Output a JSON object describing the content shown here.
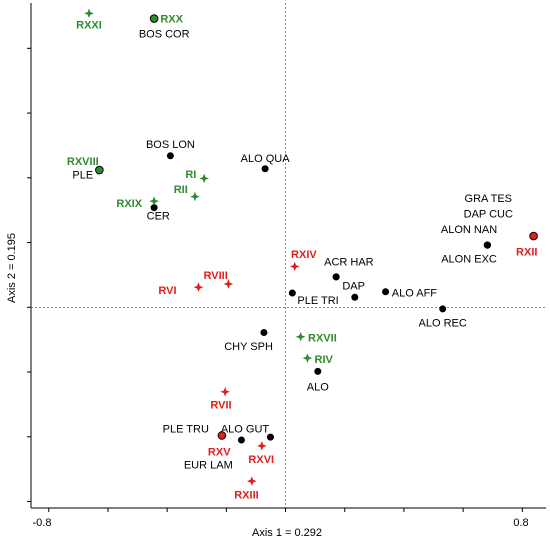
{
  "chart_data": {
    "type": "scatter",
    "xlabel": "Axis 1 = 0.292",
    "ylabel": "Axis 2 = 0.195",
    "x_tick_labels": [
      "-0.8",
      "0.8"
    ],
    "xlim": [
      -0.86,
      0.88
    ],
    "ylim": [
      -0.62,
      0.94
    ],
    "grid": false,
    "reference_lines": "dashed lines at x = 0 and y = 0",
    "colors": {
      "species": "#000000",
      "sites_green": "#2e8b2e",
      "sites_red": "#e0201c"
    },
    "species": [
      {
        "label": "BOS COR",
        "x": -0.444,
        "y": 0.892
      },
      {
        "label": "BOS LON",
        "x": -0.389,
        "y": 0.468
      },
      {
        "label": "ALO QUA",
        "x": -0.069,
        "y": 0.428
      },
      {
        "label": "PLE",
        "x": -0.629,
        "y": 0.424
      },
      {
        "label": "CER",
        "x": -0.444,
        "y": 0.308
      },
      {
        "label": "GRA TES",
        "x": 0.682,
        "y": 0.192
      },
      {
        "label": "DAP CUC",
        "x": 0.682,
        "y": 0.192
      },
      {
        "label": "ALON NAN",
        "x": 0.682,
        "y": 0.192
      },
      {
        "label": "ALON EXC",
        "x": 0.682,
        "y": 0.192
      },
      {
        "label": "ACR HAR",
        "x": 0.171,
        "y": 0.094
      },
      {
        "label": "DAP",
        "x": 0.171,
        "y": 0.094
      },
      {
        "label": "ALO AFF",
        "x": 0.338,
        "y": 0.048
      },
      {
        "label": "PLE TRI",
        "x": 0.023,
        "y": 0.044
      },
      {
        "label": "PLE TRI",
        "x": 0.234,
        "y": 0.031
      },
      {
        "label": "ALO REC",
        "x": 0.531,
        "y": -0.005
      },
      {
        "label": "CHY SPH",
        "x": -0.073,
        "y": -0.078
      },
      {
        "label": "ALO",
        "x": 0.109,
        "y": -0.198
      },
      {
        "label": "PLE TRU",
        "x": -0.149,
        "y": -0.41
      },
      {
        "label": "ALO GUT",
        "x": -0.051,
        "y": -0.401
      },
      {
        "label": "EUR LAM",
        "x": -0.215,
        "y": -0.396
      }
    ],
    "sites": [
      {
        "label": "RXX",
        "x": -0.444,
        "y": 0.892,
        "color": "#2e8b2e",
        "symbol": "circle"
      },
      {
        "label": "RXXI",
        "x": -0.664,
        "y": 0.908,
        "color": "#2e8b2e",
        "symbol": "star"
      },
      {
        "label": "RXVIII",
        "x": -0.629,
        "y": 0.424,
        "color": "#2e8b2e",
        "symbol": "circle"
      },
      {
        "label": "RI",
        "x": -0.275,
        "y": 0.398,
        "color": "#2e8b2e",
        "symbol": "star"
      },
      {
        "label": "RII",
        "x": -0.306,
        "y": 0.342,
        "color": "#2e8b2e",
        "symbol": "star"
      },
      {
        "label": "RXIX",
        "x": -0.444,
        "y": 0.328,
        "color": "#2e8b2e",
        "symbol": "star"
      },
      {
        "label": "RXII",
        "x": 0.838,
        "y": 0.22,
        "color": "#e0201c",
        "symbol": "circle"
      },
      {
        "label": "RXIV",
        "x": 0.031,
        "y": 0.126,
        "color": "#e0201c",
        "symbol": "star"
      },
      {
        "label": "RVIII",
        "x": -0.193,
        "y": 0.072,
        "color": "#e0201c",
        "symbol": "star"
      },
      {
        "label": "RVI",
        "x": -0.294,
        "y": 0.062,
        "color": "#e0201c",
        "symbol": "star"
      },
      {
        "label": "RXVII",
        "x": 0.051,
        "y": -0.091,
        "color": "#2e8b2e",
        "symbol": "star"
      },
      {
        "label": "RIV",
        "x": 0.074,
        "y": -0.157,
        "color": "#2e8b2e",
        "symbol": "star"
      },
      {
        "label": "RVII",
        "x": -0.204,
        "y": -0.261,
        "color": "#e0201c",
        "symbol": "star"
      },
      {
        "label": "RXV",
        "x": -0.215,
        "y": -0.396,
        "color": "#e0201c",
        "symbol": "circle"
      },
      {
        "label": "RXVI",
        "x": -0.08,
        "y": -0.428,
        "color": "#e0201c",
        "symbol": "star"
      },
      {
        "label": "RXIII",
        "x": -0.114,
        "y": -0.537,
        "color": "#e0201c",
        "symbol": "star"
      }
    ],
    "labels": [
      {
        "text": "RXXI",
        "x": -0.664,
        "y": 0.873,
        "color": "#2e8b2e",
        "bold": true,
        "anchor": "middle"
      },
      {
        "text": "RXX",
        "x": -0.423,
        "y": 0.892,
        "color": "#2e8b2e",
        "bold": true,
        "anchor": "start"
      },
      {
        "text": "BOS COR",
        "x": -0.41,
        "y": 0.846,
        "color": "#000000",
        "bold": false,
        "anchor": "middle"
      },
      {
        "text": "BOS LON",
        "x": -0.389,
        "y": 0.504,
        "color": "#000000",
        "bold": false,
        "anchor": "middle"
      },
      {
        "text": "ALO QUA",
        "x": -0.069,
        "y": 0.461,
        "color": "#000000",
        "bold": false,
        "anchor": "middle"
      },
      {
        "text": "RXVIII",
        "x": -0.685,
        "y": 0.452,
        "color": "#2e8b2e",
        "bold": true,
        "anchor": "middle"
      },
      {
        "text": "PLE",
        "x": -0.685,
        "y": 0.41,
        "color": "#000000",
        "bold": false,
        "anchor": "middle"
      },
      {
        "text": "RI",
        "x": -0.32,
        "y": 0.412,
        "color": "#2e8b2e",
        "bold": true,
        "anchor": "middle"
      },
      {
        "text": "RII",
        "x": -0.354,
        "y": 0.365,
        "color": "#2e8b2e",
        "bold": true,
        "anchor": "middle"
      },
      {
        "text": "RXIX",
        "x": -0.528,
        "y": 0.322,
        "color": "#2e8b2e",
        "bold": true,
        "anchor": "middle"
      },
      {
        "text": "CER",
        "x": -0.43,
        "y": 0.283,
        "color": "#000000",
        "bold": false,
        "anchor": "middle"
      },
      {
        "text": "GRA TES",
        "x": 0.685,
        "y": 0.337,
        "color": "#000000",
        "bold": false,
        "anchor": "middle"
      },
      {
        "text": "DAP CUC",
        "x": 0.685,
        "y": 0.29,
        "color": "#000000",
        "bold": false,
        "anchor": "middle"
      },
      {
        "text": "ALON NAN",
        "x": 0.62,
        "y": 0.242,
        "color": "#000000",
        "bold": false,
        "anchor": "middle"
      },
      {
        "text": "ALON EXC",
        "x": 0.62,
        "y": 0.151,
        "color": "#000000",
        "bold": false,
        "anchor": "middle"
      },
      {
        "text": "RXII",
        "x": 0.815,
        "y": 0.172,
        "color": "#e0201c",
        "bold": true,
        "anchor": "middle"
      },
      {
        "text": "RXIV",
        "x": 0.062,
        "y": 0.164,
        "color": "#e0201c",
        "bold": true,
        "anchor": "middle"
      },
      {
        "text": "ACR HAR",
        "x": 0.214,
        "y": 0.141,
        "color": "#000000",
        "bold": false,
        "anchor": "middle"
      },
      {
        "text": "RVIII",
        "x": -0.236,
        "y": 0.099,
        "color": "#e0201c",
        "bold": true,
        "anchor": "middle"
      },
      {
        "text": "DAP",
        "x": 0.192,
        "y": 0.067,
        "color": "#000000",
        "bold": false,
        "anchor": "start"
      },
      {
        "text": "RVI",
        "x": -0.399,
        "y": 0.053,
        "color": "#e0201c",
        "bold": true,
        "anchor": "middle"
      },
      {
        "text": "ALO AFF",
        "x": 0.359,
        "y": 0.046,
        "color": "#000000",
        "bold": false,
        "anchor": "start"
      },
      {
        "text": "PLE TRI",
        "x": 0.04,
        "y": 0.022,
        "color": "#000000",
        "bold": false,
        "anchor": "start"
      },
      {
        "text": "ALO REC",
        "x": 0.531,
        "y": -0.047,
        "color": "#000000",
        "bold": false,
        "anchor": "middle"
      },
      {
        "text": "RXVII",
        "x": 0.076,
        "y": -0.094,
        "color": "#2e8b2e",
        "bold": true,
        "anchor": "start"
      },
      {
        "text": "CHY SPH",
        "x": -0.125,
        "y": -0.119,
        "color": "#000000",
        "bold": false,
        "anchor": "middle"
      },
      {
        "text": "RIV",
        "x": 0.098,
        "y": -0.16,
        "color": "#2e8b2e",
        "bold": true,
        "anchor": "start"
      },
      {
        "text": "ALO",
        "x": 0.109,
        "y": -0.244,
        "color": "#000000",
        "bold": false,
        "anchor": "middle"
      },
      {
        "text": "RVII",
        "x": -0.218,
        "y": -0.3,
        "color": "#e0201c",
        "bold": true,
        "anchor": "middle"
      },
      {
        "text": "PLE TRU",
        "x": -0.337,
        "y": -0.374,
        "color": "#000000",
        "bold": false,
        "anchor": "middle"
      },
      {
        "text": "ALO GUT",
        "x": -0.137,
        "y": -0.374,
        "color": "#000000",
        "bold": false,
        "anchor": "middle"
      },
      {
        "text": "RXV",
        "x": -0.224,
        "y": -0.446,
        "color": "#e0201c",
        "bold": true,
        "anchor": "middle"
      },
      {
        "text": "RXVI",
        "x": -0.082,
        "y": -0.468,
        "color": "#e0201c",
        "bold": true,
        "anchor": "middle"
      },
      {
        "text": "EUR LAM",
        "x": -0.261,
        "y": -0.486,
        "color": "#000000",
        "bold": false,
        "anchor": "middle"
      },
      {
        "text": "RXIII",
        "x": -0.132,
        "y": -0.578,
        "color": "#e0201c",
        "bold": true,
        "anchor": "middle"
      }
    ]
  }
}
